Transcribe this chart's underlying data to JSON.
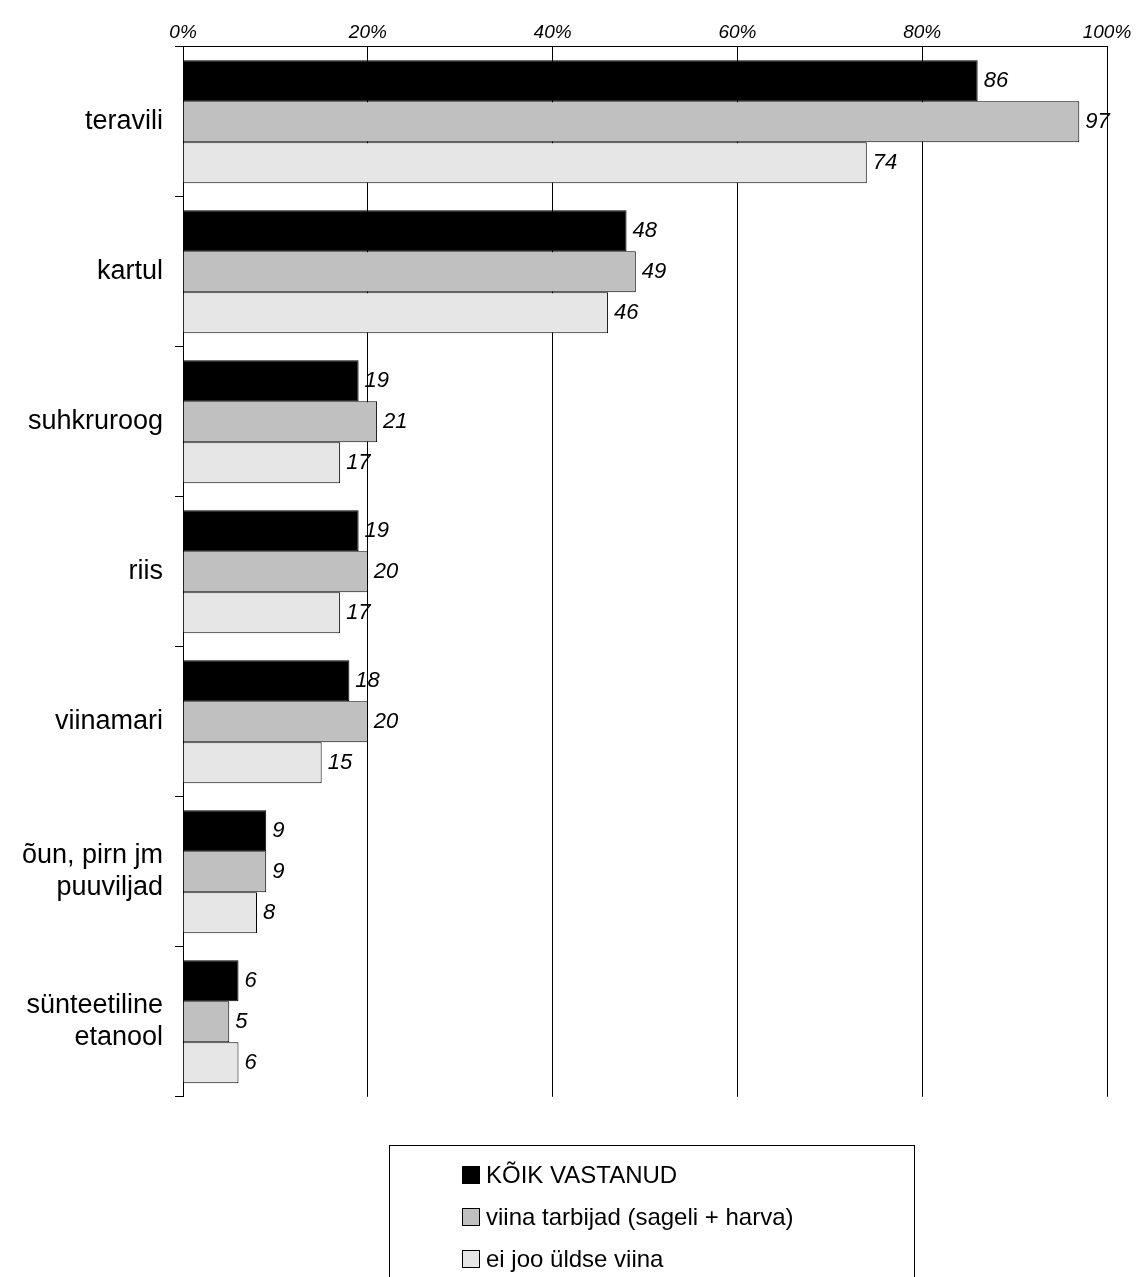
{
  "chart_data": {
    "type": "bar",
    "orientation": "horizontal",
    "categories": [
      "teravili",
      "kartul",
      "suhkruroog",
      "riis",
      "viinamari",
      "õun, pirn jm puuviljad",
      "sünteetiline etanool"
    ],
    "series": [
      {
        "name": "KÕIK VASTANUD",
        "color": "#000000",
        "values": [
          86,
          48,
          19,
          19,
          18,
          9,
          6
        ]
      },
      {
        "name": "viina tarbijad (sageli + harva)",
        "color": "#c0c0c0",
        "values": [
          97,
          49,
          21,
          20,
          20,
          9,
          5
        ]
      },
      {
        "name": "ei joo üldse viina",
        "color": "#e6e6e6",
        "values": [
          74,
          46,
          17,
          17,
          15,
          8,
          6
        ]
      }
    ],
    "xlim": [
      0,
      100
    ],
    "xticks": [
      {
        "value": 0,
        "label": "0%"
      },
      {
        "value": 20,
        "label": "20%"
      },
      {
        "value": 40,
        "label": "40%"
      },
      {
        "value": 60,
        "label": "60%"
      },
      {
        "value": 80,
        "label": "80%"
      },
      {
        "value": 100,
        "label": "100%"
      }
    ],
    "grid": "x",
    "legend": "bottom",
    "data_labels": true
  }
}
